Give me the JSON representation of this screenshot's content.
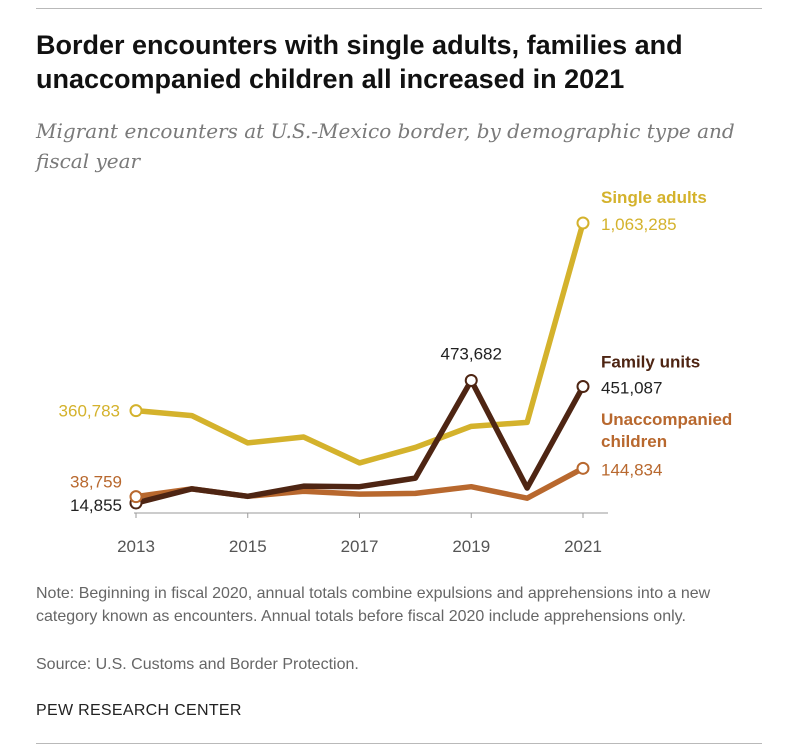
{
  "header": {
    "title": "Border encounters with single adults, families and unaccompanied children all increased in 2021",
    "subtitle": "Migrant encounters at U.S.-Mexico border, by demographic type and fiscal year"
  },
  "footer": {
    "note": "Note: Beginning in fiscal 2020, annual totals combine expulsions and apprehensions into a new category known as encounters. Annual totals before fiscal 2020 include apprehensions only.",
    "source": "Source: U.S. Customs and Border Protection.",
    "brand": "PEW RESEARCH CENTER"
  },
  "chart_data": {
    "type": "line",
    "x": [
      2013,
      2014,
      2015,
      2016,
      2017,
      2018,
      2019,
      2020,
      2021
    ],
    "x_ticks": [
      "2013",
      "2015",
      "2017",
      "2019",
      "2021"
    ],
    "ylim": [
      0,
      1100000
    ],
    "grid": false,
    "series": [
      {
        "name": "Single adults",
        "color": "#d4b22c",
        "values": [
          360783,
          342000,
          240000,
          262000,
          165000,
          223000,
          302000,
          317000,
          1063285
        ],
        "labels": [
          {
            "index": 0,
            "text": "360,783"
          },
          {
            "index": 8,
            "text": "1,063,285"
          }
        ]
      },
      {
        "name": "Family units",
        "color": "#4e2513",
        "values": [
          14855,
          68000,
          40000,
          78000,
          76000,
          108000,
          473682,
          71000,
          451087
        ],
        "labels": [
          {
            "index": 0,
            "text": "14,855"
          },
          {
            "index": 6,
            "text": "473,682"
          },
          {
            "index": 8,
            "text": "451,087"
          }
        ]
      },
      {
        "name": "Unaccompanied children",
        "color": "#b8682e",
        "values": [
          38759,
          68000,
          40000,
          59000,
          48000,
          51000,
          76000,
          33000,
          144834
        ],
        "labels": [
          {
            "index": 0,
            "text": "38,759"
          },
          {
            "index": 8,
            "text": "144,834"
          }
        ]
      }
    ]
  }
}
